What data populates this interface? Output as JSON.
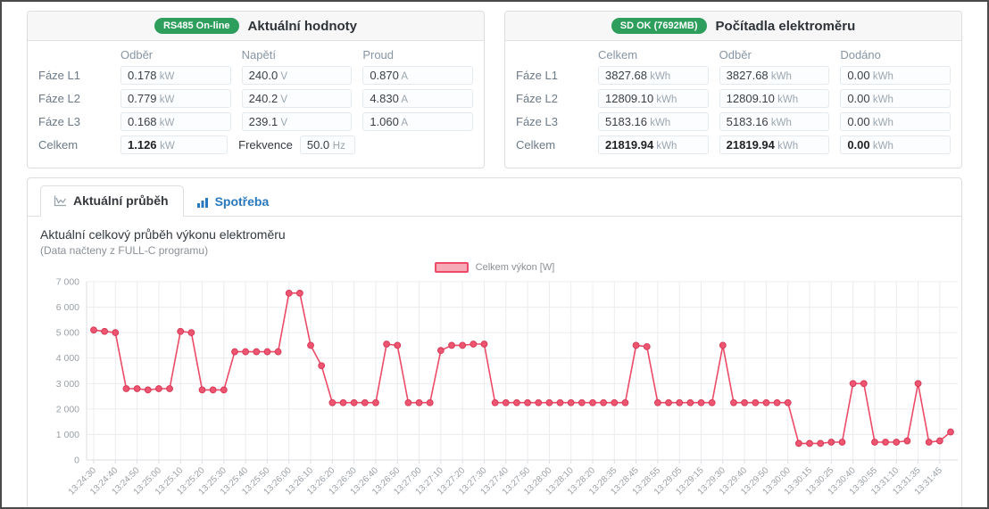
{
  "current_values_panel": {
    "badge": "RS485 On-line",
    "title": "Aktuální hodnoty",
    "columns": [
      "Odběr",
      "Napětí",
      "Proud"
    ],
    "rows": [
      {
        "label": "Fáze L1",
        "values": [
          {
            "v": "0.178",
            "u": "kW"
          },
          {
            "v": "240.0",
            "u": "V"
          },
          {
            "v": "0.870",
            "u": "A"
          }
        ]
      },
      {
        "label": "Fáze L2",
        "values": [
          {
            "v": "0.779",
            "u": "kW"
          },
          {
            "v": "240.2",
            "u": "V"
          },
          {
            "v": "4.830",
            "u": "A"
          }
        ]
      },
      {
        "label": "Fáze L3",
        "values": [
          {
            "v": "0.168",
            "u": "kW"
          },
          {
            "v": "239.1",
            "u": "V"
          },
          {
            "v": "1.060",
            "u": "A"
          }
        ]
      }
    ],
    "total": {
      "label": "Celkem",
      "value": "1.126",
      "unit": "kW",
      "freq_label": "Frekvence",
      "freq_value": "50.0",
      "freq_unit": "Hz"
    }
  },
  "counters_panel": {
    "badge": "SD OK (7692MB)",
    "title": "Počítadla elektroměru",
    "columns": [
      "Celkem",
      "Odběr",
      "Dodáno"
    ],
    "rows": [
      {
        "label": "Fáze L1",
        "values": [
          {
            "v": "3827.68",
            "u": "kWh"
          },
          {
            "v": "3827.68",
            "u": "kWh"
          },
          {
            "v": "0.00",
            "u": "kWh"
          }
        ]
      },
      {
        "label": "Fáze L2",
        "values": [
          {
            "v": "12809.10",
            "u": "kWh"
          },
          {
            "v": "12809.10",
            "u": "kWh"
          },
          {
            "v": "0.00",
            "u": "kWh"
          }
        ]
      },
      {
        "label": "Fáze L3",
        "values": [
          {
            "v": "5183.16",
            "u": "kWh"
          },
          {
            "v": "5183.16",
            "u": "kWh"
          },
          {
            "v": "0.00",
            "u": "kWh"
          }
        ]
      }
    ],
    "total_row": {
      "label": "Celkem",
      "values": [
        {
          "v": "21819.94",
          "u": "kWh"
        },
        {
          "v": "21819.94",
          "u": "kWh"
        },
        {
          "v": "0.00",
          "u": "kWh"
        }
      ],
      "bold": true
    }
  },
  "chart_panel": {
    "tabs": [
      {
        "label": "Aktuální průběh",
        "active": true
      },
      {
        "label": "Spotřeba",
        "active": false
      }
    ],
    "heading": "Aktuální celkový průběh výkonu elektroměru",
    "subheading": "(Data načteny z FULL-C programu)",
    "legend_label": "Celkem výkon [W]"
  },
  "chart_data": {
    "type": "line",
    "title": "Aktuální celkový průběh výkonu elektroměru",
    "legend": [
      "Celkem výkon [W]"
    ],
    "legend_position": "top-center",
    "grid": true,
    "xlabel": "",
    "ylabel": "",
    "ylim": [
      0,
      7000
    ],
    "y_ticks": [
      0,
      1000,
      2000,
      3000,
      4000,
      5000,
      6000,
      7000
    ],
    "y_tick_labels": [
      "0",
      "1 000",
      "2 000",
      "3 000",
      "4 000",
      "5 000",
      "6 000",
      "7 000"
    ],
    "x_tick_labels": [
      "13:24:30",
      "13:24:40",
      "13:24:50",
      "13:25:00",
      "13:25:10",
      "13:25:20",
      "13:25:30",
      "13:25:40",
      "13:25:50",
      "13:26:00",
      "13:26:10",
      "13:26:20",
      "13:26:30",
      "13:26:40",
      "13:26:50",
      "13:27:00",
      "13:27:10",
      "13:27:20",
      "13:27:30",
      "13:27:40",
      "13:27:50",
      "13:28:00",
      "13:28:10",
      "13:28:20",
      "13:28:35",
      "13:28:45",
      "13:28:55",
      "13:29:05",
      "13:29:15",
      "13:29:30",
      "13:29:40",
      "13:29:50",
      "13:30:00",
      "13:30:15",
      "13:30:25",
      "13:30:40",
      "13:30:55",
      "13:31:10",
      "13:31:35",
      "13:31:45"
    ],
    "points_per_label": 2,
    "series": [
      {
        "name": "Celkem výkon [W]",
        "values": [
          5100,
          5050,
          5000,
          2800,
          2800,
          2750,
          2800,
          2800,
          5050,
          5000,
          2750,
          2750,
          2750,
          4250,
          4250,
          4250,
          4250,
          4250,
          6550,
          6550,
          4500,
          3700,
          2250,
          2250,
          2250,
          2250,
          2250,
          4550,
          4500,
          2250,
          2250,
          2250,
          4300,
          4500,
          4500,
          4550,
          4550,
          2250,
          2250,
          2250,
          2250,
          2250,
          2250,
          2250,
          2250,
          2250,
          2250,
          2250,
          2250,
          2250,
          4500,
          4450,
          2250,
          2250,
          2250,
          2250,
          2250,
          2250,
          4500,
          2250,
          2250,
          2250,
          2250,
          2250,
          2250,
          650,
          650,
          650,
          700,
          700,
          3000,
          3000,
          700,
          700,
          700,
          750,
          3000,
          700,
          750,
          1100
        ]
      }
    ]
  },
  "colors": {
    "badge_green": "#2e9e5c",
    "tab_link_blue": "#2878be",
    "line_pink": "#ec4a66",
    "point_fill": "#ed5570",
    "point_stroke": "#d63a57",
    "legend_fill": "#f6aab8",
    "grid_line": "#ececee",
    "axis_line": "#d9dde1",
    "tick_text": "#9aa0a6"
  }
}
